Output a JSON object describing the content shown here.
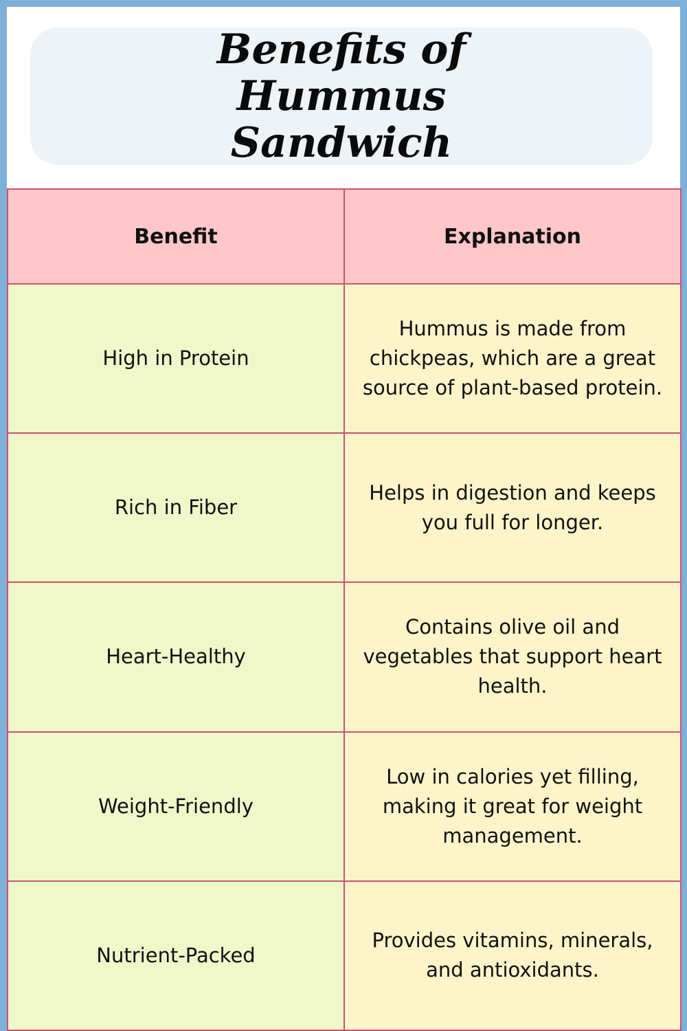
{
  "title": "Benefits of Hummus Sandwich",
  "table": {
    "headers": [
      "Benefit",
      "Explanation"
    ],
    "rows": [
      {
        "benefit": "High in Protein",
        "explanation": "Hummus is made from chickpeas, which are a great source of plant-based protein."
      },
      {
        "benefit": "Rich in Fiber",
        "explanation": "Helps in digestion and keeps you full for longer."
      },
      {
        "benefit": "Heart-Healthy",
        "explanation": "Contains olive oil and vegetables that support heart health."
      },
      {
        "benefit": "Weight-Friendly",
        "explanation": "Low in calories yet filling, making it great for weight management."
      },
      {
        "benefit": "Nutrient-Packed",
        "explanation": "Provides vitamins, minerals, and antioxidants."
      }
    ]
  },
  "colors": {
    "frame": "#7fb0d9",
    "title_box": "#edf3f6",
    "header_bg": "#ffc7c9",
    "benefit_bg": "#f0f7c9",
    "explanation_bg": "#fef4c9",
    "grid_line": "#c9536d"
  }
}
